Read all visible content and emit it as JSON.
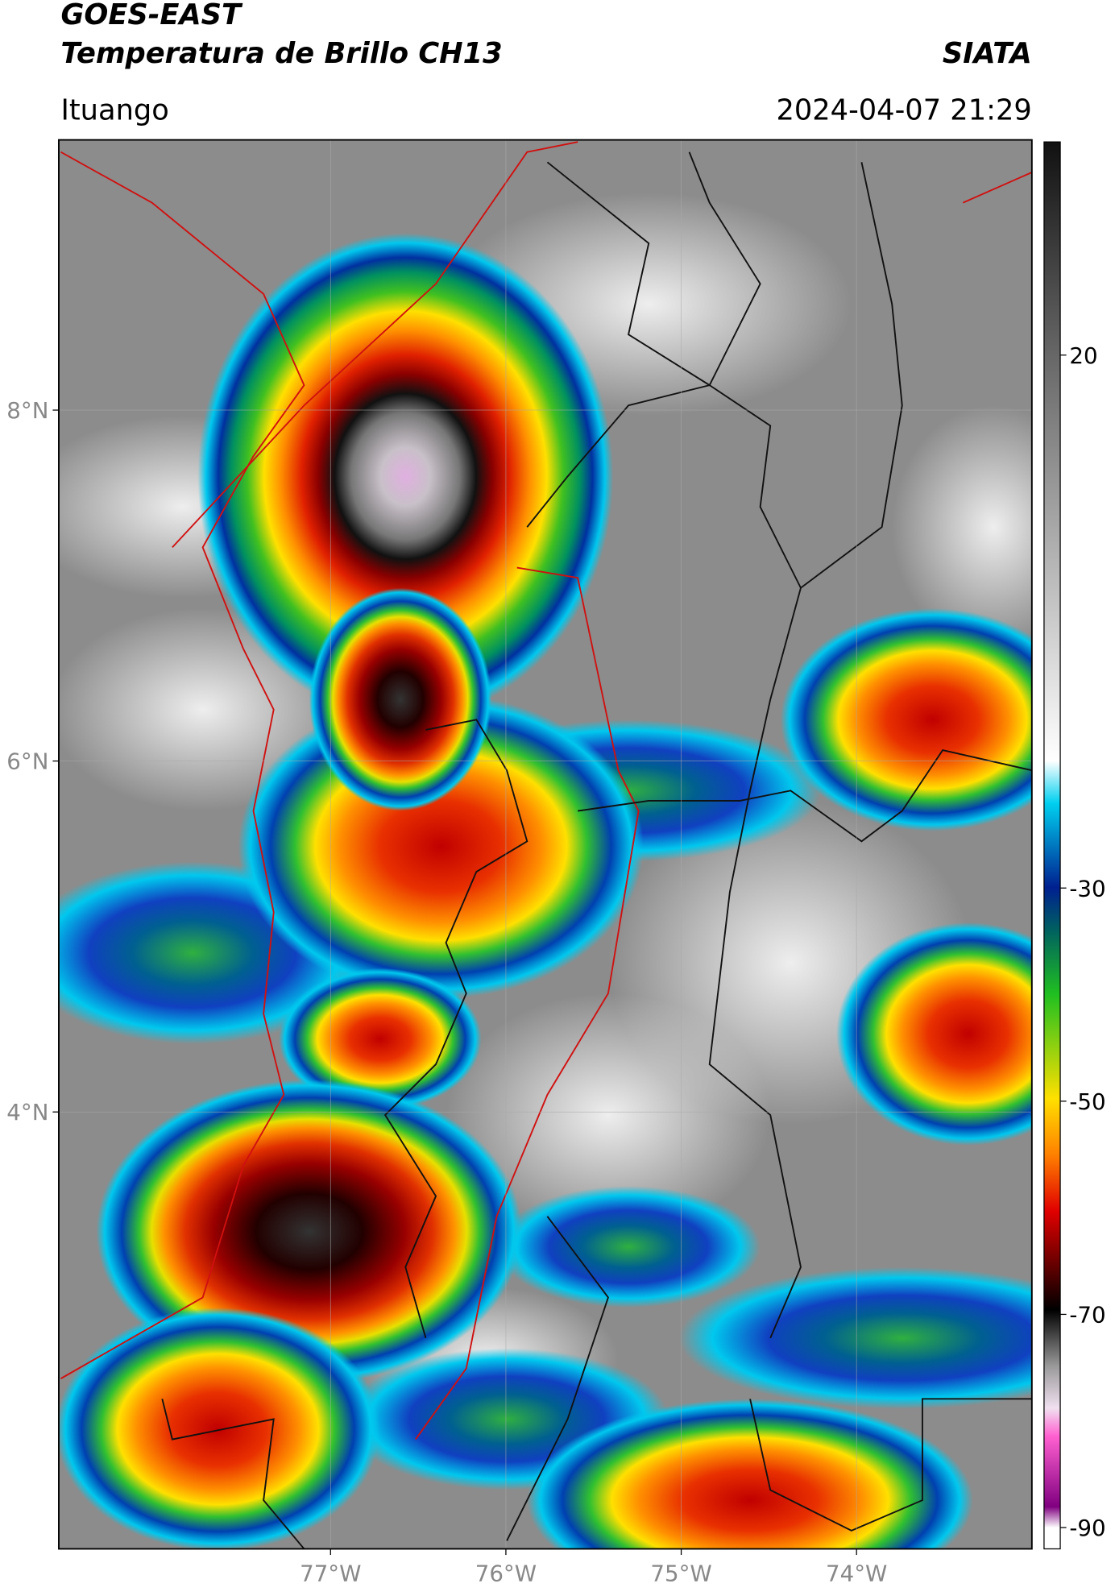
{
  "header": {
    "satellite": "GOES-EAST",
    "product": "Temperatura de Brillo CH13",
    "source": "SIATA",
    "region": "Ituango",
    "datetime": "2024-04-07 21:29"
  },
  "map": {
    "xlim": [
      -78.55,
      -73.0
    ],
    "ylim": [
      1.51,
      9.54
    ],
    "xticks": [
      {
        "value": -77,
        "label": "77°W"
      },
      {
        "value": -76,
        "label": "76°W"
      },
      {
        "value": -75,
        "label": "75°W"
      },
      {
        "value": -74,
        "label": "74°W"
      }
    ],
    "yticks": [
      {
        "value": 8,
        "label": "8°N"
      },
      {
        "value": 6,
        "label": "6°N"
      },
      {
        "value": 4,
        "label": "4°N"
      }
    ],
    "grid": true
  },
  "colorbar": {
    "ylim": [
      -92,
      40
    ],
    "yticks": [
      20,
      -30,
      -50,
      -70,
      -90
    ]
  }
}
